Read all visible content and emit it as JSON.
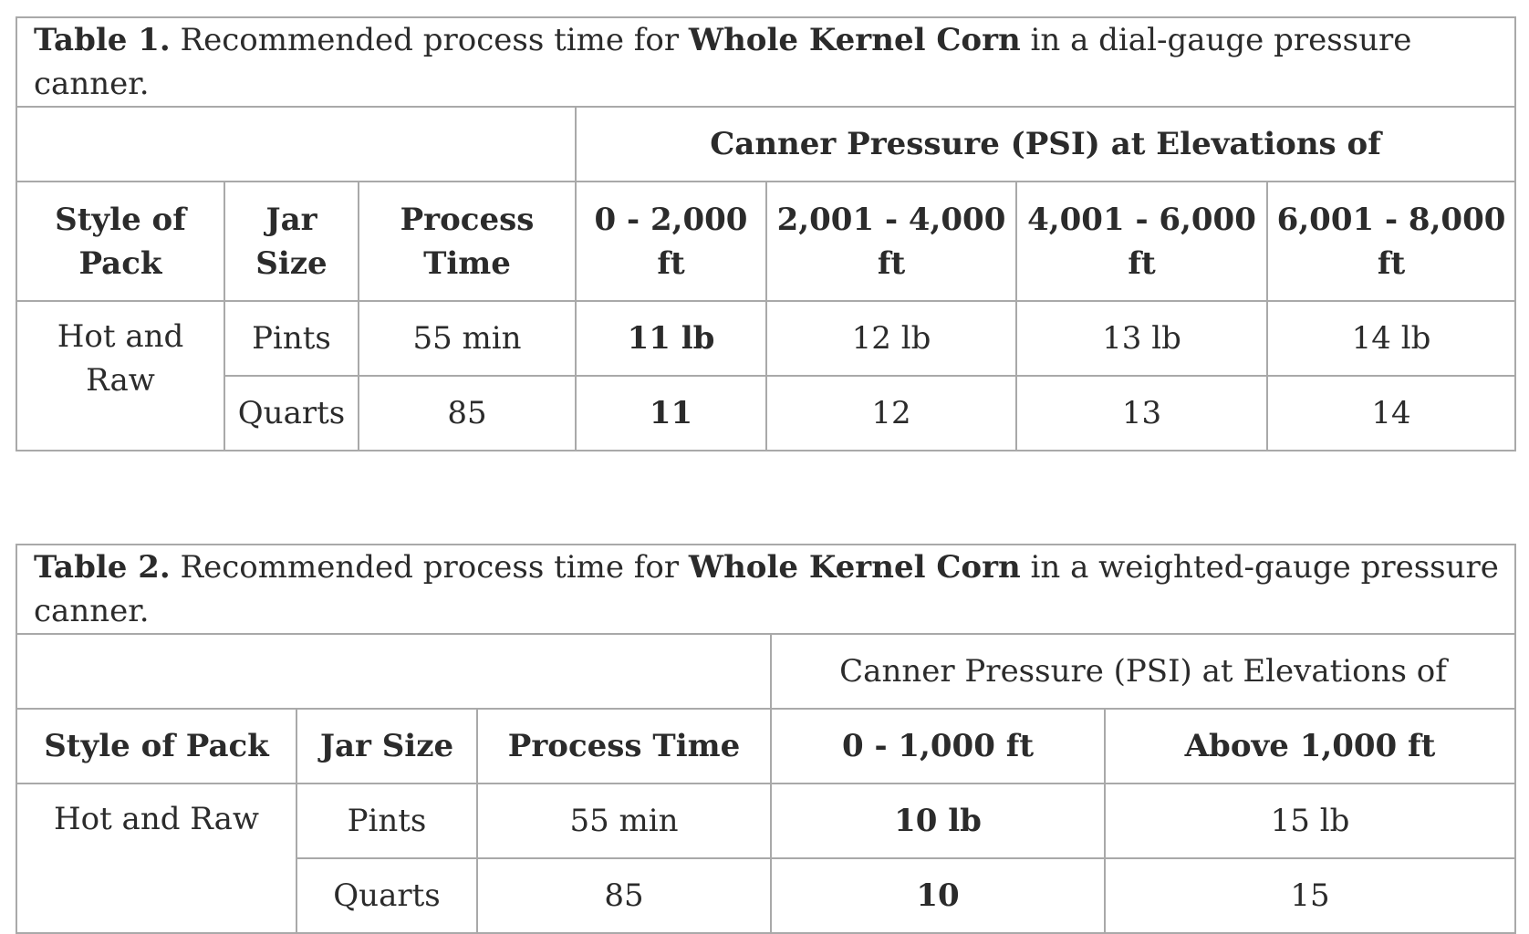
{
  "table1": {
    "caption_label": "Table 1.",
    "caption_pre": " Recommended process time for ",
    "caption_bold": "Whole Kernel Corn",
    "caption_post": " in a dial-gauge pressure canner.",
    "group_header": "Canner Pressure (PSI) at Elevations of",
    "headers": [
      "Style of Pack",
      "Jar Size",
      "Process Time",
      "0 - 2,000 ft",
      "2,001 - 4,000 ft",
      "4,001 - 6,000 ft",
      "6,001 - 8,000 ft"
    ],
    "style": "Hot and Raw",
    "rows": [
      {
        "jar": "Pints",
        "time": "55 min",
        "p1": "11 lb",
        "p2": "12 lb",
        "p3": "13 lb",
        "p4": "14 lb"
      },
      {
        "jar": "Quarts",
        "time": "85",
        "p1": "11",
        "p2": "12",
        "p3": "13",
        "p4": "14"
      }
    ]
  },
  "table2": {
    "caption_label": "Table 2.",
    "caption_pre": " Recommended process time for ",
    "caption_bold": "Whole Kernel Corn",
    "caption_post": " in a weighted-gauge pressure canner.",
    "group_header": "Canner Pressure (PSI) at Elevations of",
    "headers": [
      "Style of Pack",
      "Jar Size",
      "Process Time",
      "0 - 1,000 ft",
      "Above 1,000 ft"
    ],
    "style": "Hot and Raw",
    "rows": [
      {
        "jar": "Pints",
        "time": "55 min",
        "p1": "10 lb",
        "p2": "15 lb"
      },
      {
        "jar": "Quarts",
        "time": "85",
        "p1": "10",
        "p2": "15"
      }
    ]
  }
}
